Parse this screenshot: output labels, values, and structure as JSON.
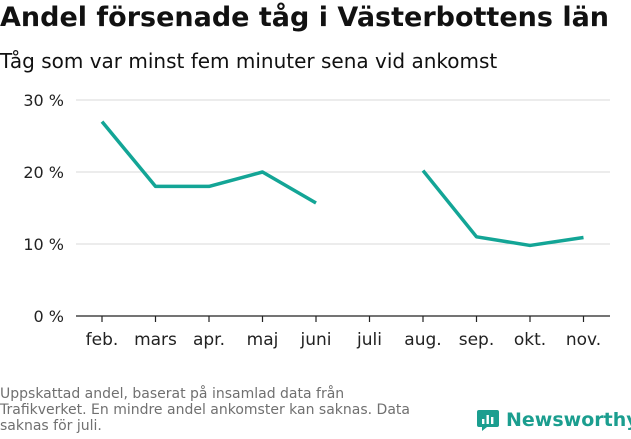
{
  "header": {
    "title": "Andel försenade tåg i Västerbottens län",
    "subtitle": "Tåg som var minst fem minuter sena vid ankomst"
  },
  "footer": {
    "note": "Uppskattad andel, baserat på insamlad data från Trafikverket. En mindre andel ankomster kan saknas. Data saknas för juli.",
    "brand": "Newsworthy"
  },
  "colors": {
    "line": "#13a596",
    "grid": "#d9d9d9",
    "axis": "#222222",
    "brand": "#1b9e8f"
  },
  "chart_data": {
    "type": "line",
    "categories": [
      "feb.",
      "mars",
      "apr.",
      "maj",
      "juni",
      "juli",
      "aug.",
      "sep.",
      "okt.",
      "nov."
    ],
    "series": [
      {
        "values": [
          27,
          18,
          18,
          20,
          15.7,
          null,
          20.2,
          11,
          9.8,
          10.9
        ]
      }
    ],
    "yticks": [
      "0 %",
      "10 %",
      "20 %",
      "30 %"
    ],
    "ylim": [
      0,
      30
    ],
    "ytick_values": [
      0,
      10,
      20,
      30
    ],
    "grid": true
  }
}
